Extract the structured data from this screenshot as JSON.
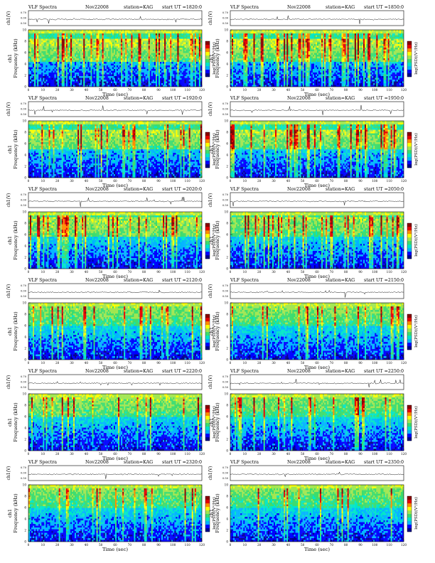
{
  "labels": {
    "title_prefix": "VLF Spectra",
    "date": "Nov22008",
    "station": "station=KAG",
    "start_prefix": "start  UT  =",
    "waveform_ylabel": "ch1(V)",
    "channel": "ch1",
    "freq_ylabel": "Frequency  (kHz)",
    "colorbar_label": "log(PSD)(V²/Hz)",
    "time_xlabel": "Time  (sec)"
  },
  "colors": {
    "colormap": [
      "#00008b",
      "#0000ff",
      "#00b4ff",
      "#00e6c8",
      "#3cdc6e",
      "#a0e650",
      "#ffff00",
      "#ff8c00",
      "#e60000",
      "#8b0000"
    ]
  },
  "chart_data": [
    {
      "type": "heatmap",
      "start_ut": "1820:0",
      "time_range": [
        0,
        120
      ],
      "freq_range": [
        0,
        10
      ],
      "time_ticks": [
        0,
        10,
        20,
        30,
        40,
        50,
        60,
        70,
        80,
        90,
        100,
        110,
        120
      ],
      "freq_ticks": [
        0,
        2,
        4,
        6,
        8,
        10
      ],
      "waveform_ticks": [
        "0.70",
        "0.00",
        "0.50"
      ],
      "activity": 0.85,
      "band_khz": [
        4.5,
        8.5
      ]
    },
    {
      "type": "heatmap",
      "start_ut": "1850:0",
      "time_range": [
        0,
        120
      ],
      "freq_range": [
        0,
        10
      ],
      "time_ticks": [
        0,
        10,
        20,
        30,
        40,
        50,
        60,
        70,
        80,
        90,
        100,
        110,
        120
      ],
      "freq_ticks": [
        0,
        2,
        4,
        6,
        8,
        10
      ],
      "waveform_ticks": [
        "0.70",
        "0.00",
        "0.50"
      ],
      "activity": 0.85,
      "band_khz": [
        4.5,
        8.5
      ]
    },
    {
      "type": "heatmap",
      "start_ut": "1920:0",
      "time_range": [
        0,
        120
      ],
      "freq_range": [
        0,
        10
      ],
      "time_ticks": [
        0,
        10,
        20,
        30,
        40,
        50,
        60,
        70,
        80,
        90,
        100,
        110,
        120
      ],
      "freq_ticks": [
        0,
        2,
        4,
        6,
        8,
        10
      ],
      "waveform_ticks": [
        "0.70",
        "0.00",
        "0.50"
      ],
      "activity": 0.8,
      "band_khz": [
        5.0,
        8.5
      ]
    },
    {
      "type": "heatmap",
      "start_ut": "1950:0",
      "time_range": [
        0,
        120
      ],
      "freq_range": [
        0,
        10
      ],
      "time_ticks": [
        0,
        10,
        20,
        30,
        40,
        50,
        60,
        70,
        80,
        90,
        100,
        110,
        120
      ],
      "freq_ticks": [
        0,
        2,
        4,
        6,
        8,
        10
      ],
      "waveform_ticks": [
        "0.70",
        "0.00",
        "0.50"
      ],
      "activity": 0.75,
      "band_khz": [
        5.0,
        8.5
      ]
    },
    {
      "type": "heatmap",
      "start_ut": "2020:0",
      "time_range": [
        0,
        120
      ],
      "freq_range": [
        0,
        10
      ],
      "time_ticks": [
        0,
        10,
        20,
        30,
        40,
        50,
        60,
        70,
        80,
        90,
        100,
        110,
        120
      ],
      "freq_ticks": [
        0,
        2,
        4,
        6,
        8,
        10
      ],
      "waveform_ticks": [
        "0.70",
        "0.00",
        "0.50"
      ],
      "activity": 0.7,
      "band_khz": [
        5.5,
        9.0
      ]
    },
    {
      "type": "heatmap",
      "start_ut": "2050:0",
      "time_range": [
        0,
        120
      ],
      "freq_range": [
        0,
        10
      ],
      "time_ticks": [
        0,
        10,
        20,
        30,
        40,
        50,
        60,
        70,
        80,
        90,
        100,
        110,
        120
      ],
      "freq_ticks": [
        0,
        2,
        4,
        6,
        8,
        10
      ],
      "waveform_ticks": [
        "0.70",
        "0.00",
        "0.50"
      ],
      "activity": 0.6,
      "band_khz": [
        5.5,
        9.0
      ]
    },
    {
      "type": "heatmap",
      "start_ut": "2120:0",
      "time_range": [
        0,
        120
      ],
      "freq_range": [
        0,
        10
      ],
      "time_ticks": [
        0,
        10,
        20,
        30,
        40,
        50,
        60,
        70,
        80,
        90,
        100,
        110,
        120
      ],
      "freq_ticks": [
        0,
        2,
        4,
        6,
        8,
        10
      ],
      "waveform_ticks": [
        "0.70",
        "0.00",
        "0.50"
      ],
      "activity": 0.5,
      "band_khz": [
        6.0,
        9.5
      ]
    },
    {
      "type": "heatmap",
      "start_ut": "2150:0",
      "time_range": [
        0,
        120
      ],
      "freq_range": [
        0,
        10
      ],
      "time_ticks": [
        0,
        10,
        20,
        30,
        40,
        50,
        60,
        70,
        80,
        90,
        100,
        110,
        120
      ],
      "freq_ticks": [
        0,
        2,
        4,
        6,
        8,
        10
      ],
      "waveform_ticks": [
        "0.70",
        "0.00",
        "0.50"
      ],
      "activity": 0.5,
      "band_khz": [
        6.0,
        9.5
      ]
    },
    {
      "type": "heatmap",
      "start_ut": "2220:0",
      "time_range": [
        0,
        120
      ],
      "freq_range": [
        0,
        10
      ],
      "time_ticks": [
        0,
        10,
        20,
        30,
        40,
        50,
        60,
        70,
        80,
        90,
        100,
        110,
        120
      ],
      "freq_ticks": [
        0,
        2,
        4,
        6,
        8,
        10
      ],
      "waveform_ticks": [
        "0.70",
        "0.00",
        "0.50"
      ],
      "activity": 0.55,
      "band_khz": [
        6.0,
        9.5
      ]
    },
    {
      "type": "heatmap",
      "start_ut": "2250:0",
      "time_range": [
        0,
        120
      ],
      "freq_range": [
        0,
        10
      ],
      "time_ticks": [
        0,
        10,
        20,
        30,
        40,
        50,
        60,
        70,
        80,
        90,
        100,
        110,
        120
      ],
      "freq_ticks": [
        0,
        2,
        4,
        6,
        8,
        10
      ],
      "waveform_ticks": [
        "0.70",
        "0.00",
        "0.50"
      ],
      "activity": 0.45,
      "band_khz": [
        6.0,
        9.5
      ]
    },
    {
      "type": "heatmap",
      "start_ut": "2320:0",
      "time_range": [
        0,
        120
      ],
      "freq_range": [
        0,
        10
      ],
      "time_ticks": [
        0,
        10,
        20,
        30,
        40,
        50,
        60,
        70,
        80,
        90,
        100,
        110,
        120
      ],
      "freq_ticks": [
        0,
        2,
        4,
        6,
        8,
        10
      ],
      "waveform_ticks": [
        "0.70",
        "0.00",
        "0.50"
      ],
      "activity": 0.45,
      "band_khz": [
        6.0,
        9.5
      ]
    },
    {
      "type": "heatmap",
      "start_ut": "2350:0",
      "time_range": [
        0,
        120
      ],
      "freq_range": [
        0,
        10
      ],
      "time_ticks": [
        0,
        10,
        20,
        30,
        40,
        50,
        60,
        70,
        80,
        90,
        100,
        110,
        120
      ],
      "freq_ticks": [
        0,
        2,
        4,
        6,
        8,
        10
      ],
      "waveform_ticks": [
        "0.70",
        "0.00",
        "0.50"
      ],
      "activity": 0.4,
      "band_khz": [
        6.0,
        9.5
      ]
    }
  ]
}
